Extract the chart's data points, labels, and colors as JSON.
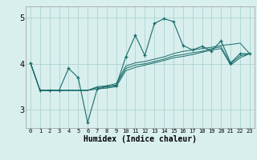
{
  "xlabel": "Humidex (Indice chaleur)",
  "bg_color": "#d8efee",
  "grid_color": "#aed4d0",
  "line_color": "#1a6b6b",
  "xlim": [
    -0.5,
    23.5
  ],
  "ylim": [
    2.6,
    5.25
  ],
  "yticks": [
    3,
    4,
    5
  ],
  "xticks": [
    0,
    1,
    2,
    3,
    4,
    5,
    6,
    7,
    8,
    9,
    10,
    11,
    12,
    13,
    14,
    15,
    16,
    17,
    18,
    19,
    20,
    21,
    22,
    23
  ],
  "main_line": [
    4.02,
    3.42,
    3.42,
    3.42,
    3.9,
    3.7,
    2.72,
    3.45,
    3.5,
    3.52,
    4.15,
    4.62,
    4.18,
    4.88,
    4.98,
    4.92,
    4.4,
    4.3,
    4.38,
    4.28,
    4.5,
    4.02,
    4.22,
    4.22
  ],
  "trend_lines": [
    [
      4.02,
      3.42,
      3.42,
      3.42,
      3.42,
      3.42,
      3.42,
      3.5,
      3.52,
      3.57,
      3.95,
      4.02,
      4.05,
      4.1,
      4.15,
      4.22,
      4.27,
      4.3,
      4.33,
      4.36,
      4.4,
      4.42,
      4.45,
      4.22
    ],
    [
      4.02,
      3.42,
      3.42,
      3.42,
      3.42,
      3.42,
      3.42,
      3.48,
      3.5,
      3.54,
      3.9,
      3.97,
      4.0,
      4.05,
      4.1,
      4.17,
      4.2,
      4.24,
      4.27,
      4.33,
      4.37,
      4.0,
      4.17,
      4.22
    ],
    [
      4.02,
      3.42,
      3.42,
      3.42,
      3.42,
      3.42,
      3.42,
      3.45,
      3.47,
      3.5,
      3.85,
      3.92,
      3.97,
      4.02,
      4.07,
      4.13,
      4.16,
      4.2,
      4.25,
      4.3,
      4.33,
      3.97,
      4.13,
      4.22
    ]
  ]
}
